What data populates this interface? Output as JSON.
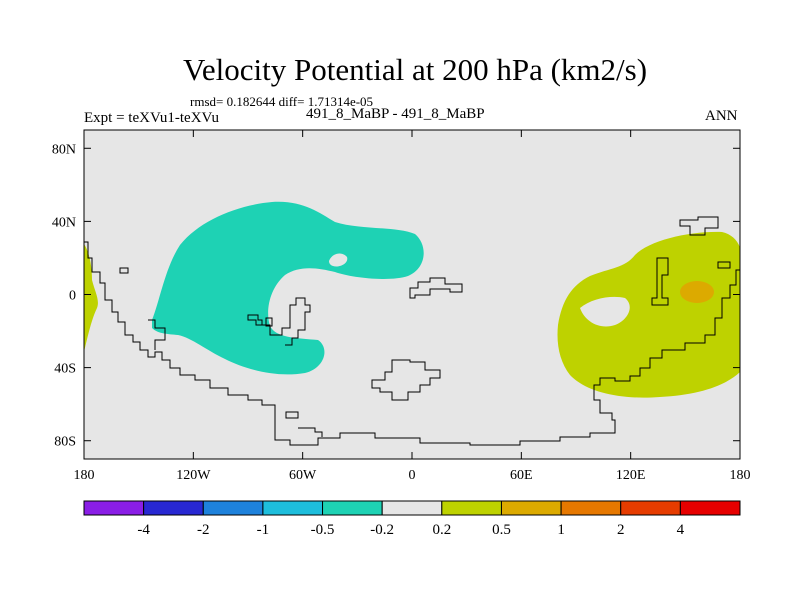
{
  "chart_data": {
    "type": "heatmap",
    "title": "Velocity Potential at 200 hPa (km2/s)",
    "stats": "rmsd= 0.182644 diff= 1.71314e-05",
    "experiment": "Expt = teXVu1-teXVu",
    "cases": "491_8_MaBP - 491_8_MaBP",
    "season": "ANN",
    "x_tick_labels": [
      "180",
      "120W",
      "60W",
      "0",
      "60E",
      "120E",
      "180"
    ],
    "y_tick_labels": [
      "80N",
      "40N",
      "0",
      "40S",
      "80S"
    ],
    "x_ticks": [
      -180,
      -120,
      -60,
      0,
      60,
      120,
      180
    ],
    "y_ticks": [
      80,
      40,
      0,
      -40,
      -80
    ],
    "xlim": [
      -180,
      180
    ],
    "ylim": [
      -90,
      90
    ],
    "colorbar": {
      "labels": [
        "-4",
        "-2",
        "-1",
        "-0.5",
        "-0.2",
        "0.2",
        "0.5",
        "1",
        "2",
        "4"
      ],
      "bin_colors": [
        "#8a1ee6",
        "#2828d2",
        "#1e82dc",
        "#1ebedc",
        "#1ed2b4",
        "#e6e6e6",
        "#bed200",
        "#dcaa00",
        "#e67800",
        "#e63c00",
        "#e60000"
      ]
    },
    "regions": [
      {
        "name": "negative-region",
        "value_range": [
          -0.5,
          -0.2
        ],
        "color": "#1ed2b4"
      },
      {
        "name": "positive-region-east",
        "value_range": [
          0.2,
          0.5
        ],
        "color": "#bed200"
      },
      {
        "name": "positive-region-west-edge",
        "value_range": [
          0.2,
          0.5
        ],
        "color": "#bed200"
      },
      {
        "name": "positive-core",
        "value_range": [
          0.5,
          1
        ],
        "color": "#dcaa00"
      }
    ]
  }
}
